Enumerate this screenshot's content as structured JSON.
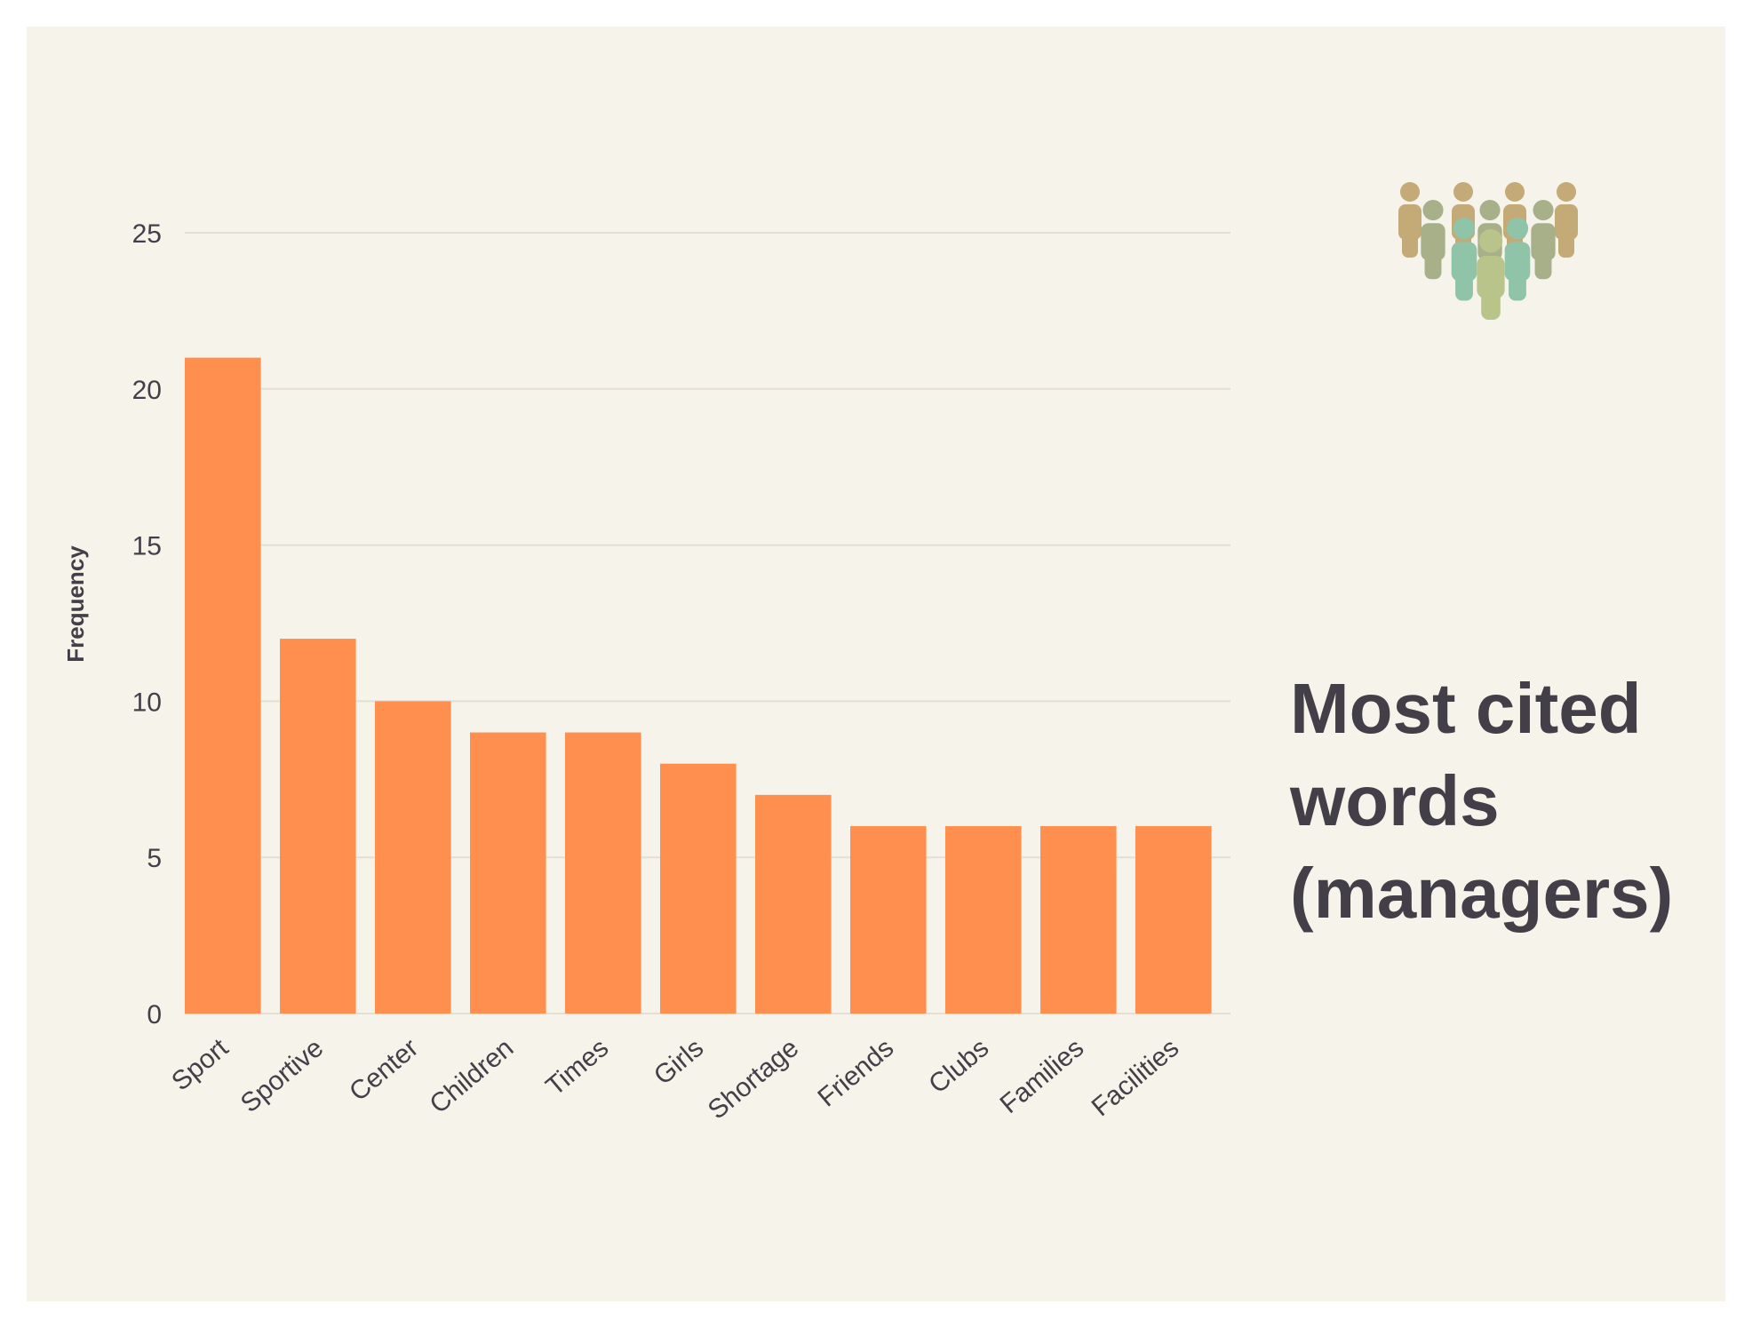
{
  "chart_data": {
    "type": "bar",
    "title": "Most cited words (managers)",
    "xlabel": "",
    "ylabel": "Frequency",
    "categories": [
      "Sport",
      "Sportive",
      "Center",
      "Children",
      "Times",
      "Girls",
      "Shortage",
      "Friends",
      "Clubs",
      "Families",
      "Facilities"
    ],
    "values": [
      21,
      12,
      10,
      9,
      9,
      8,
      7,
      6,
      6,
      6,
      6
    ],
    "ylim": [
      0,
      25
    ],
    "yticks": [
      "0",
      "5",
      "10",
      "15",
      "20",
      "25"
    ],
    "grid": true,
    "bar_color": "#ff8f4f"
  },
  "colors": {
    "background": "#f6f3ea",
    "gridline": "#e3dfd6",
    "text": "#433f48",
    "icon_people": [
      "#c4aa76",
      "#a8b08a",
      "#8fc4a8",
      "#b8c48a"
    ]
  },
  "icon": "people-group-icon"
}
